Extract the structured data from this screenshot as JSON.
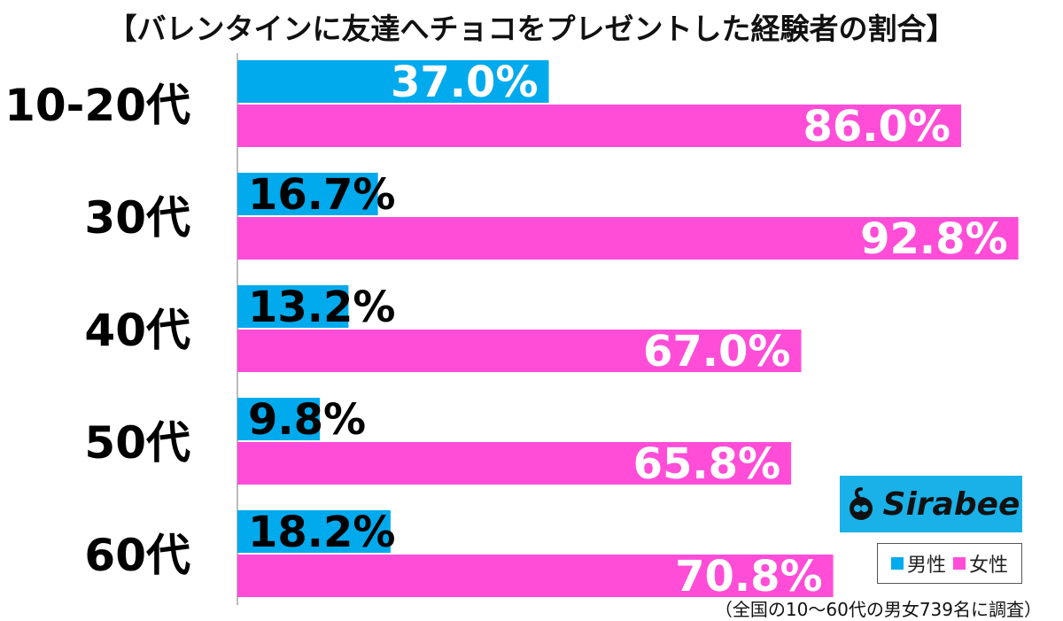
{
  "title": "【バレンタインに友達へチョコをプレゼントした経験者の割合】",
  "footnote": "（全国の10～60代の男女739名に調査）",
  "logo": {
    "text": "Sirabee",
    "color": "#1ab1e8"
  },
  "legend": {
    "male": "男性",
    "female": "女性"
  },
  "colors": {
    "male": "#00aaed",
    "female": "#ff4dd8"
  },
  "chart_data": {
    "type": "bar",
    "orientation": "horizontal",
    "categories": [
      "10-20代",
      "30代",
      "40代",
      "50代",
      "60代"
    ],
    "series": [
      {
        "name": "男性",
        "values": [
          37.0,
          16.7,
          13.2,
          9.8,
          18.2
        ],
        "labels": [
          "37.0%",
          "16.7%",
          "13.2%",
          "9.8%",
          "18.2%"
        ]
      },
      {
        "name": "女性",
        "values": [
          86.0,
          92.8,
          67.0,
          65.8,
          70.8
        ],
        "labels": [
          "86.0%",
          "92.8%",
          "67.0%",
          "65.8%",
          "70.8%"
        ]
      }
    ],
    "xlim": [
      0,
      100
    ],
    "grid": false,
    "legend_position": "bottom-right"
  }
}
